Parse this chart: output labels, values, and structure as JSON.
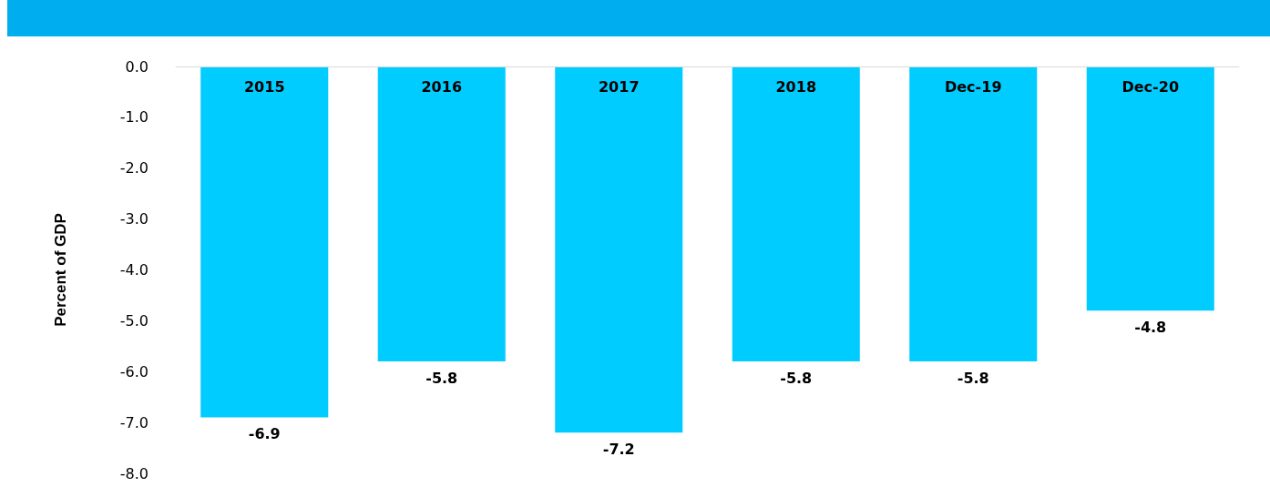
{
  "chart_data": {
    "type": "bar",
    "ylabel": "Percent of GDP",
    "categories": [
      "2015",
      "2016",
      "2017",
      "2018",
      "Dec-19",
      "Dec-20"
    ],
    "values": [
      -6.9,
      -5.8,
      -7.2,
      -5.8,
      -5.8,
      -4.8
    ],
    "color": "#00ccff",
    "data_labels": true,
    "grid": false,
    "ylim": [
      -8,
      0
    ],
    "yticks": [
      {
        "value": 0,
        "label": "0.0"
      },
      {
        "value": -1,
        "label": "-1.0"
      },
      {
        "value": -2,
        "label": "-2.0"
      },
      {
        "value": -3,
        "label": "-3.0"
      },
      {
        "value": -4,
        "label": "-4.0"
      },
      {
        "value": -5,
        "label": "-5.0"
      },
      {
        "value": -6,
        "label": "-6.0"
      },
      {
        "value": -7,
        "label": "-7.0"
      },
      {
        "value": -8,
        "label": "-8.0"
      }
    ]
  }
}
